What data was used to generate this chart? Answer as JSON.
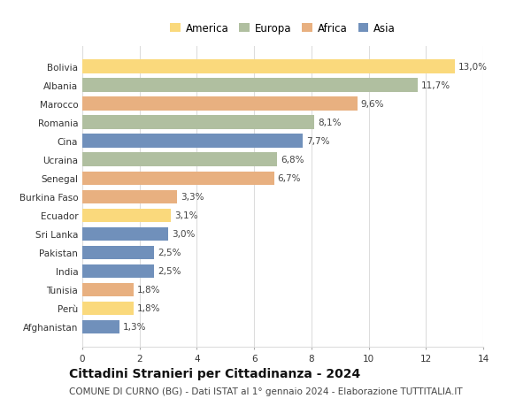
{
  "countries": [
    "Bolivia",
    "Albania",
    "Marocco",
    "Romania",
    "Cina",
    "Ucraina",
    "Senegal",
    "Burkina Faso",
    "Ecuador",
    "Sri Lanka",
    "Pakistan",
    "India",
    "Tunisia",
    "Perù",
    "Afghanistan"
  ],
  "values": [
    13.0,
    11.7,
    9.6,
    8.1,
    7.7,
    6.8,
    6.7,
    3.3,
    3.1,
    3.0,
    2.5,
    2.5,
    1.8,
    1.8,
    1.3
  ],
  "labels": [
    "13,0%",
    "11,7%",
    "9,6%",
    "8,1%",
    "7,7%",
    "6,8%",
    "6,7%",
    "3,3%",
    "3,1%",
    "3,0%",
    "2,5%",
    "2,5%",
    "1,8%",
    "1,8%",
    "1,3%"
  ],
  "continents": [
    "America",
    "Europa",
    "Africa",
    "Europa",
    "Asia",
    "Europa",
    "Africa",
    "Africa",
    "America",
    "Asia",
    "Asia",
    "Asia",
    "Africa",
    "America",
    "Asia"
  ],
  "colors": {
    "America": "#FAD97C",
    "Europa": "#B0BFA0",
    "Africa": "#E8B080",
    "Asia": "#7090BB"
  },
  "xlim": [
    0,
    14
  ],
  "xticks": [
    0,
    2,
    4,
    6,
    8,
    10,
    12,
    14
  ],
  "title": "Cittadini Stranieri per Cittadinanza - 2024",
  "subtitle": "COMUNE DI CURNO (BG) - Dati ISTAT al 1° gennaio 2024 - Elaborazione TUTTITALIA.IT",
  "background_color": "#ffffff",
  "grid_color": "#dddddd",
  "bar_height": 0.72,
  "label_fontsize": 7.5,
  "title_fontsize": 10,
  "subtitle_fontsize": 7.5,
  "ytick_fontsize": 7.5,
  "xtick_fontsize": 7.5,
  "legend_fontsize": 8.5
}
